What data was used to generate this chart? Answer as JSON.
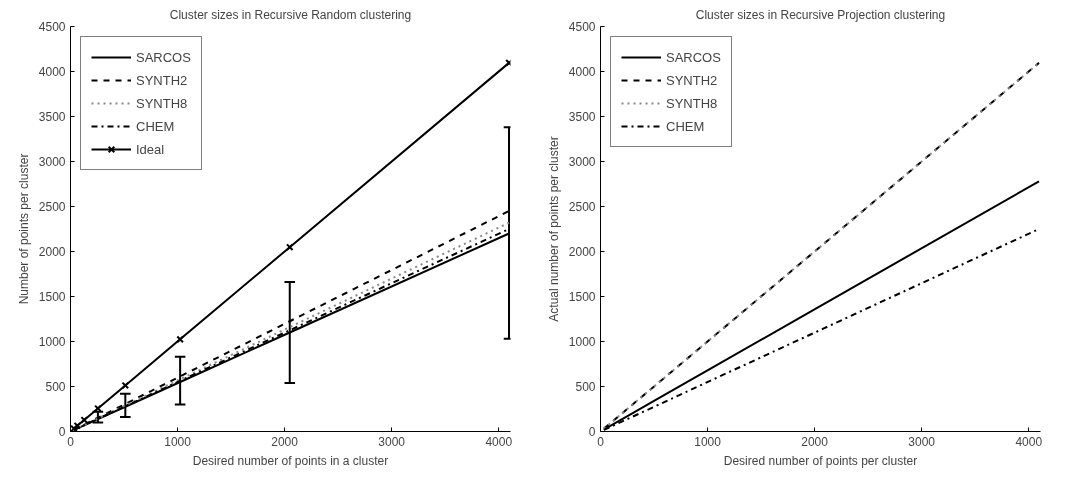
{
  "chart_data": [
    {
      "type": "line",
      "title": "Cluster sizes in Recursive Random clustering",
      "xlabel": "Desired number of points in a cluster",
      "ylabel": "Number of points per cluster",
      "x": [
        32,
        64,
        128,
        256,
        512,
        1024,
        2048,
        4096
      ],
      "xlim": [
        0,
        4110
      ],
      "ylim": [
        0,
        4500
      ],
      "xticks": [
        0,
        1000,
        2000,
        3000,
        4000
      ],
      "yticks": [
        0,
        500,
        1000,
        1500,
        2000,
        2500,
        3000,
        3500,
        4000,
        4500
      ],
      "grid": false,
      "legend": "top left",
      "series": [
        {
          "name": "SARCOS",
          "color": "#000000",
          "line_style": "solid",
          "values": [
            17,
            34,
            69,
            137,
            275,
            550,
            1100,
            2200
          ],
          "errors": [
            null,
            null,
            null,
            [
              100,
              220
            ],
            [
              160,
              420
            ],
            [
              300,
              830
            ],
            [
              540,
              1660
            ],
            [
              1030,
              3380
            ]
          ]
        },
        {
          "name": "SYNTH2",
          "color": "#000000",
          "line_style": "dashed",
          "values": [
            19,
            38,
            77,
            153,
            306,
            612,
            1225,
            2450
          ]
        },
        {
          "name": "SYNTH8",
          "color": "#888888",
          "line_style": "dotted",
          "values": [
            18,
            36,
            72,
            145,
            290,
            580,
            1160,
            2320
          ]
        },
        {
          "name": "CHEM",
          "color": "#000000",
          "line_style": "dashdot",
          "values": [
            18,
            35,
            70,
            141,
            281,
            563,
            1125,
            2250
          ]
        },
        {
          "name": "Ideal",
          "color": "#000000",
          "line_style": "solid",
          "marker": "cross",
          "values": [
            32,
            64,
            128,
            256,
            512,
            1024,
            2048,
            4096
          ]
        }
      ]
    },
    {
      "type": "line",
      "title": "Cluster sizes in Recursive Projection clustering",
      "xlabel": "Desired number of points per cluster",
      "ylabel": "Actual number of points per cluster",
      "x": [
        32,
        64,
        128,
        256,
        512,
        1024,
        2048,
        4096
      ],
      "xlim": [
        0,
        4110
      ],
      "ylim": [
        0,
        4500
      ],
      "xticks": [
        0,
        1000,
        2000,
        3000,
        4000
      ],
      "yticks": [
        0,
        500,
        1000,
        1500,
        2000,
        2500,
        3000,
        3500,
        4000,
        4500
      ],
      "grid": false,
      "legend": "top left",
      "series": [
        {
          "name": "SARCOS",
          "color": "#000000",
          "line_style": "solid",
          "values": [
            22,
            43,
            87,
            174,
            348,
            695,
            1390,
            2780
          ]
        },
        {
          "name": "SYNTH2",
          "color": "#000000",
          "line_style": "dashed",
          "values": [
            32,
            64,
            128,
            256,
            512,
            1024,
            2048,
            4096
          ]
        },
        {
          "name": "SYNTH8",
          "color": "#888888",
          "line_style": "dotted",
          "values": [
            32,
            64,
            128,
            256,
            512,
            1024,
            2048,
            4096
          ]
        },
        {
          "name": "CHEM",
          "color": "#000000",
          "line_style": "dashdot",
          "values": [
            18,
            35,
            70,
            141,
            281,
            563,
            1125,
            2250
          ]
        }
      ]
    }
  ]
}
